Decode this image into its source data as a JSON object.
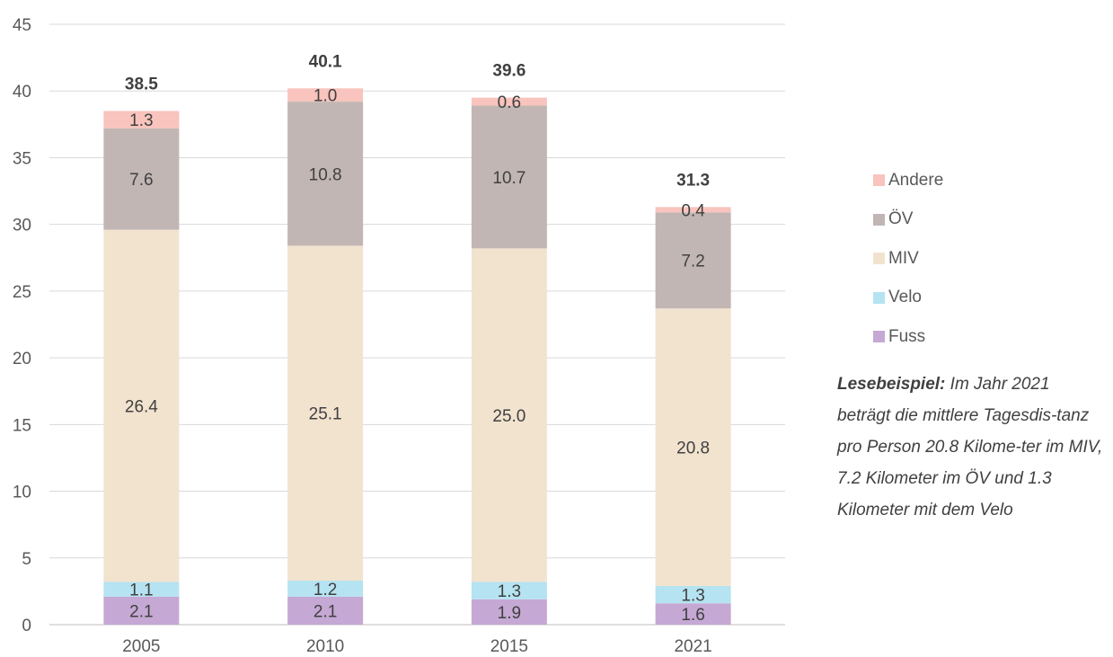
{
  "chart_data": {
    "type": "bar",
    "stacked": true,
    "categories": [
      "2005",
      "2010",
      "2015",
      "2021"
    ],
    "series": [
      {
        "name": "Fuss",
        "values": [
          2.1,
          2.1,
          1.9,
          1.6
        ],
        "labels": [
          "2.1",
          "2.1",
          "1.9",
          "1.6"
        ],
        "color": "#c5a8d4"
      },
      {
        "name": "Velo",
        "values": [
          1.1,
          1.2,
          1.3,
          1.3
        ],
        "labels": [
          "1.1",
          "1.2",
          "1.3",
          "1.3"
        ],
        "color": "#b5e3f1"
      },
      {
        "name": "MIV",
        "values": [
          26.4,
          25.1,
          25.0,
          20.8
        ],
        "labels": [
          "26.4",
          "25.1",
          "25.0",
          "20.8"
        ],
        "color": "#f2e3cf"
      },
      {
        "name": "ÖV",
        "values": [
          7.6,
          10.8,
          10.7,
          7.2
        ],
        "labels": [
          "7.6",
          "10.8",
          "10.7",
          "7.2"
        ],
        "color": "#c1b6b3"
      },
      {
        "name": "Andere",
        "values": [
          1.3,
          1.0,
          0.6,
          0.4
        ],
        "labels": [
          "1.3",
          "1.0",
          "0.6",
          "0.4"
        ],
        "color": "#f8c4bd"
      }
    ],
    "totals": [
      "38.5",
      "40.1",
      "39.6",
      "31.3"
    ],
    "ylim": [
      0,
      45
    ],
    "yticks": [
      "0",
      "5",
      "10",
      "15",
      "20",
      "25",
      "30",
      "35",
      "40",
      "45"
    ],
    "grid": true,
    "legend_position": "right",
    "title": "",
    "xlabel": "",
    "ylabel": ""
  },
  "note": {
    "lead": "Lesebeispiel:",
    "text": " Im Jahr 2021 beträgt die mittlere Tagesdis-tanz pro Person 20.8 Kilome-ter im MIV, 7.2 Kilometer im ÖV und 1.3 Kilometer mit dem Velo"
  },
  "colors": {
    "grid": "#d9d9d9",
    "axis": "#bfbfbf",
    "text": "#595959"
  }
}
